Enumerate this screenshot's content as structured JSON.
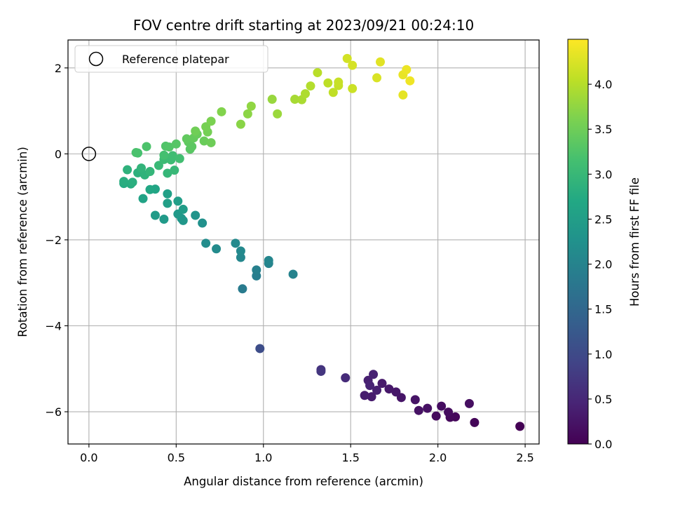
{
  "chart_data": {
    "type": "scatter",
    "title": "FOV centre drift starting at 2023/09/21 00:24:10",
    "xlabel": "Angular distance from reference (arcmin)",
    "ylabel": "Rotation from reference (arcmin)",
    "xlim": [
      -0.12,
      2.58
    ],
    "ylim": [
      -6.75,
      2.65
    ],
    "xticks": [
      0.0,
      0.5,
      1.0,
      1.5,
      2.0,
      2.5
    ],
    "xtick_labels": [
      "0.0",
      "0.5",
      "1.0",
      "1.5",
      "2.0",
      "2.5"
    ],
    "yticks": [
      -6,
      -4,
      -2,
      0,
      2
    ],
    "ytick_labels": [
      "−6",
      "−4",
      "−2",
      "0",
      "2"
    ],
    "grid": true,
    "colormap": "viridis",
    "colorbar": {
      "label": "Hours from first FF file",
      "range": [
        0.0,
        4.5
      ],
      "ticks": [
        0.0,
        0.5,
        1.0,
        1.5,
        2.0,
        2.5,
        3.0,
        3.5,
        4.0
      ],
      "tick_labels": [
        "0.0",
        "0.5",
        "1.0",
        "1.5",
        "2.0",
        "2.5",
        "3.0",
        "3.5",
        "4.0"
      ]
    },
    "legend": {
      "placement": "top-left",
      "entries": [
        "Reference platepar"
      ]
    },
    "reference_point": {
      "x": 0.0,
      "y": 0.0,
      "label": "Reference platepar"
    },
    "points": [
      {
        "x": 2.47,
        "y": -6.34,
        "h": 0.0
      },
      {
        "x": 2.21,
        "y": -6.25,
        "h": 0.05
      },
      {
        "x": 2.1,
        "y": -6.12,
        "h": 0.08
      },
      {
        "x": 2.07,
        "y": -6.13,
        "h": 0.1
      },
      {
        "x": 1.99,
        "y": -6.1,
        "h": 0.12
      },
      {
        "x": 2.06,
        "y": -6.01,
        "h": 0.14
      },
      {
        "x": 2.02,
        "y": -5.87,
        "h": 0.16
      },
      {
        "x": 2.18,
        "y": -5.81,
        "h": 0.18
      },
      {
        "x": 1.94,
        "y": -5.92,
        "h": 0.2
      },
      {
        "x": 1.89,
        "y": -5.97,
        "h": 0.22
      },
      {
        "x": 1.87,
        "y": -5.72,
        "h": 0.24
      },
      {
        "x": 1.79,
        "y": -5.67,
        "h": 0.26
      },
      {
        "x": 1.76,
        "y": -5.54,
        "h": 0.28
      },
      {
        "x": 1.72,
        "y": -5.47,
        "h": 0.3
      },
      {
        "x": 1.68,
        "y": -5.34,
        "h": 0.32
      },
      {
        "x": 1.62,
        "y": -5.65,
        "h": 0.34
      },
      {
        "x": 1.58,
        "y": -5.62,
        "h": 0.36
      },
      {
        "x": 1.65,
        "y": -5.5,
        "h": 0.38
      },
      {
        "x": 1.6,
        "y": -5.27,
        "h": 0.4
      },
      {
        "x": 1.63,
        "y": -5.13,
        "h": 0.42
      },
      {
        "x": 1.61,
        "y": -5.39,
        "h": 0.44
      },
      {
        "x": 1.47,
        "y": -5.21,
        "h": 0.55
      },
      {
        "x": 1.33,
        "y": -5.02,
        "h": 0.65
      },
      {
        "x": 1.33,
        "y": -5.06,
        "h": 0.7
      },
      {
        "x": 0.98,
        "y": -4.53,
        "h": 1.05
      },
      {
        "x": 0.88,
        "y": -3.14,
        "h": 1.85
      },
      {
        "x": 0.96,
        "y": -2.84,
        "h": 1.9
      },
      {
        "x": 0.96,
        "y": -2.7,
        "h": 1.95
      },
      {
        "x": 1.17,
        "y": -2.8,
        "h": 2.0
      },
      {
        "x": 1.03,
        "y": -2.55,
        "h": 2.02
      },
      {
        "x": 1.03,
        "y": -2.48,
        "h": 2.05
      },
      {
        "x": 0.87,
        "y": -2.41,
        "h": 2.07
      },
      {
        "x": 0.87,
        "y": -2.26,
        "h": 2.1
      },
      {
        "x": 0.84,
        "y": -2.08,
        "h": 2.12
      },
      {
        "x": 0.73,
        "y": -2.21,
        "h": 2.15
      },
      {
        "x": 0.67,
        "y": -2.08,
        "h": 2.17
      },
      {
        "x": 0.65,
        "y": -1.61,
        "h": 2.25
      },
      {
        "x": 0.61,
        "y": -1.43,
        "h": 2.3
      },
      {
        "x": 0.53,
        "y": -1.5,
        "h": 2.35
      },
      {
        "x": 0.54,
        "y": -1.55,
        "h": 2.37
      },
      {
        "x": 0.51,
        "y": -1.4,
        "h": 2.4
      },
      {
        "x": 0.43,
        "y": -1.52,
        "h": 2.42
      },
      {
        "x": 0.38,
        "y": -1.43,
        "h": 2.45
      },
      {
        "x": 0.54,
        "y": -1.29,
        "h": 2.47
      },
      {
        "x": 0.51,
        "y": -1.1,
        "h": 2.5
      },
      {
        "x": 0.45,
        "y": -1.15,
        "h": 2.52
      },
      {
        "x": 0.45,
        "y": -0.93,
        "h": 2.55
      },
      {
        "x": 0.31,
        "y": -1.04,
        "h": 2.6
      },
      {
        "x": 0.38,
        "y": -0.82,
        "h": 2.65
      },
      {
        "x": 0.35,
        "y": -0.83,
        "h": 2.68
      },
      {
        "x": 0.2,
        "y": -0.69,
        "h": 2.75
      },
      {
        "x": 0.24,
        "y": -0.7,
        "h": 2.78
      },
      {
        "x": 0.2,
        "y": -0.64,
        "h": 2.8
      },
      {
        "x": 0.25,
        "y": -0.66,
        "h": 2.82
      },
      {
        "x": 0.28,
        "y": -0.44,
        "h": 2.85
      },
      {
        "x": 0.22,
        "y": -0.37,
        "h": 2.87
      },
      {
        "x": 0.32,
        "y": -0.49,
        "h": 2.9
      },
      {
        "x": 0.3,
        "y": -0.33,
        "h": 2.92
      },
      {
        "x": 0.35,
        "y": -0.41,
        "h": 2.95
      },
      {
        "x": 0.45,
        "y": -0.45,
        "h": 2.97
      },
      {
        "x": 0.49,
        "y": -0.38,
        "h": 3.0
      },
      {
        "x": 0.4,
        "y": -0.27,
        "h": 3.02
      },
      {
        "x": 0.43,
        "y": -0.13,
        "h": 3.05
      },
      {
        "x": 0.47,
        "y": -0.14,
        "h": 3.07
      },
      {
        "x": 0.48,
        "y": -0.04,
        "h": 3.1
      },
      {
        "x": 0.52,
        "y": -0.11,
        "h": 3.12
      },
      {
        "x": 0.43,
        "y": -0.03,
        "h": 3.15
      },
      {
        "x": 0.28,
        "y": 0.02,
        "h": 3.17
      },
      {
        "x": 0.27,
        "y": 0.03,
        "h": 3.2
      },
      {
        "x": 0.33,
        "y": 0.17,
        "h": 3.22
      },
      {
        "x": 0.44,
        "y": 0.18,
        "h": 3.25
      },
      {
        "x": 0.46,
        "y": 0.16,
        "h": 3.27
      },
      {
        "x": 0.5,
        "y": 0.23,
        "h": 3.3
      },
      {
        "x": 0.58,
        "y": 0.11,
        "h": 3.32
      },
      {
        "x": 0.59,
        "y": 0.17,
        "h": 3.35
      },
      {
        "x": 0.57,
        "y": 0.28,
        "h": 3.37
      },
      {
        "x": 0.56,
        "y": 0.35,
        "h": 3.4
      },
      {
        "x": 0.6,
        "y": 0.37,
        "h": 3.42
      },
      {
        "x": 0.62,
        "y": 0.46,
        "h": 3.45
      },
      {
        "x": 0.66,
        "y": 0.3,
        "h": 3.47
      },
      {
        "x": 0.7,
        "y": 0.26,
        "h": 3.5
      },
      {
        "x": 0.61,
        "y": 0.53,
        "h": 3.52
      },
      {
        "x": 0.68,
        "y": 0.51,
        "h": 3.55
      },
      {
        "x": 0.67,
        "y": 0.63,
        "h": 3.57
      },
      {
        "x": 0.7,
        "y": 0.76,
        "h": 3.6
      },
      {
        "x": 0.76,
        "y": 0.98,
        "h": 3.65
      },
      {
        "x": 0.87,
        "y": 0.69,
        "h": 3.7
      },
      {
        "x": 0.91,
        "y": 0.93,
        "h": 3.72
      },
      {
        "x": 0.93,
        "y": 1.11,
        "h": 3.75
      },
      {
        "x": 1.05,
        "y": 1.27,
        "h": 3.8
      },
      {
        "x": 1.08,
        "y": 0.93,
        "h": 3.82
      },
      {
        "x": 1.18,
        "y": 1.27,
        "h": 3.9
      },
      {
        "x": 1.22,
        "y": 1.26,
        "h": 3.92
      },
      {
        "x": 1.24,
        "y": 1.4,
        "h": 3.95
      },
      {
        "x": 1.27,
        "y": 1.58,
        "h": 3.98
      },
      {
        "x": 1.31,
        "y": 1.89,
        "h": 4.02
      },
      {
        "x": 1.37,
        "y": 1.65,
        "h": 4.05
      },
      {
        "x": 1.4,
        "y": 1.43,
        "h": 4.07
      },
      {
        "x": 1.43,
        "y": 1.59,
        "h": 4.1
      },
      {
        "x": 1.43,
        "y": 1.67,
        "h": 4.12
      },
      {
        "x": 1.48,
        "y": 2.22,
        "h": 4.2
      },
      {
        "x": 1.51,
        "y": 2.06,
        "h": 4.22
      },
      {
        "x": 1.51,
        "y": 1.52,
        "h": 4.15
      },
      {
        "x": 1.65,
        "y": 1.77,
        "h": 4.25
      },
      {
        "x": 1.67,
        "y": 2.14,
        "h": 4.3
      },
      {
        "x": 1.8,
        "y": 1.84,
        "h": 4.35
      },
      {
        "x": 1.82,
        "y": 1.96,
        "h": 4.38
      },
      {
        "x": 1.84,
        "y": 1.7,
        "h": 4.4
      },
      {
        "x": 1.8,
        "y": 1.37,
        "h": 4.33
      }
    ]
  }
}
